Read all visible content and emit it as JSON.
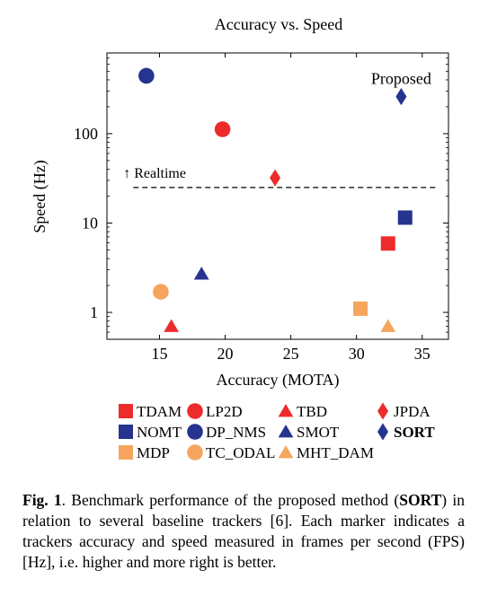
{
  "chart_data": {
    "type": "scatter",
    "title": "Accuracy vs. Speed",
    "xlabel": "Accuracy (MOTA)",
    "ylabel": "Speed (Hz)",
    "xlim": [
      11,
      37
    ],
    "ylim": [
      0.5,
      800
    ],
    "yscale": "log",
    "xticks": [
      15,
      20,
      25,
      30,
      35
    ],
    "yticks": [
      1,
      10,
      100
    ],
    "ytick_labels": [
      "1",
      "10",
      "100"
    ],
    "grid": false,
    "legend_position": "below",
    "series": [
      {
        "name": "TDAM",
        "marker": "square",
        "color": "#ee2b2b",
        "points": [
          [
            32.4,
            5.9
          ]
        ]
      },
      {
        "name": "LP2D",
        "marker": "circle",
        "color": "#ee2b2b",
        "points": [
          [
            19.8,
            112
          ]
        ]
      },
      {
        "name": "TBD",
        "marker": "triangle",
        "color": "#ee2b2b",
        "points": [
          [
            15.9,
            0.7
          ]
        ]
      },
      {
        "name": "JPDA",
        "marker": "diamond",
        "color": "#ee2b2b",
        "points": [
          [
            23.8,
            32
          ]
        ]
      },
      {
        "name": "NOMT",
        "marker": "square",
        "color": "#26338f",
        "points": [
          [
            33.7,
            11.5
          ]
        ]
      },
      {
        "name": "DP_NMS",
        "marker": "circle",
        "color": "#26338f",
        "points": [
          [
            14.0,
            444
          ]
        ]
      },
      {
        "name": "SMOT",
        "marker": "triangle",
        "color": "#26338f",
        "points": [
          [
            18.2,
            2.7
          ]
        ]
      },
      {
        "name": "SORT",
        "marker": "diamond",
        "color": "#26338f",
        "points": [
          [
            33.4,
            260
          ]
        ],
        "bold": true
      },
      {
        "name": "MDP",
        "marker": "square",
        "color": "#f5a55d",
        "points": [
          [
            30.3,
            1.1
          ]
        ]
      },
      {
        "name": "TC_ODAL",
        "marker": "circle",
        "color": "#f5a55d",
        "points": [
          [
            15.1,
            1.7
          ]
        ]
      },
      {
        "name": "MHT_DAM",
        "marker": "triangle",
        "color": "#f5a55d",
        "points": [
          [
            32.4,
            0.7
          ]
        ]
      }
    ],
    "reference_line": {
      "y": 25,
      "x_range": [
        13,
        36
      ],
      "style": "dashed",
      "label": "↑ Realtime"
    },
    "annotations": [
      {
        "text": "Proposed",
        "near_series": "SORT"
      }
    ]
  },
  "caption": {
    "label": "Fig. 1",
    "text_before": ". Benchmark performance of the proposed method (",
    "emphasis": "SORT",
    "text_after": ") in relation to several baseline trackers [6]. Each marker indicates a trackers accuracy and speed measured in frames per second (FPS) [Hz], i.e. higher and more right is better."
  }
}
